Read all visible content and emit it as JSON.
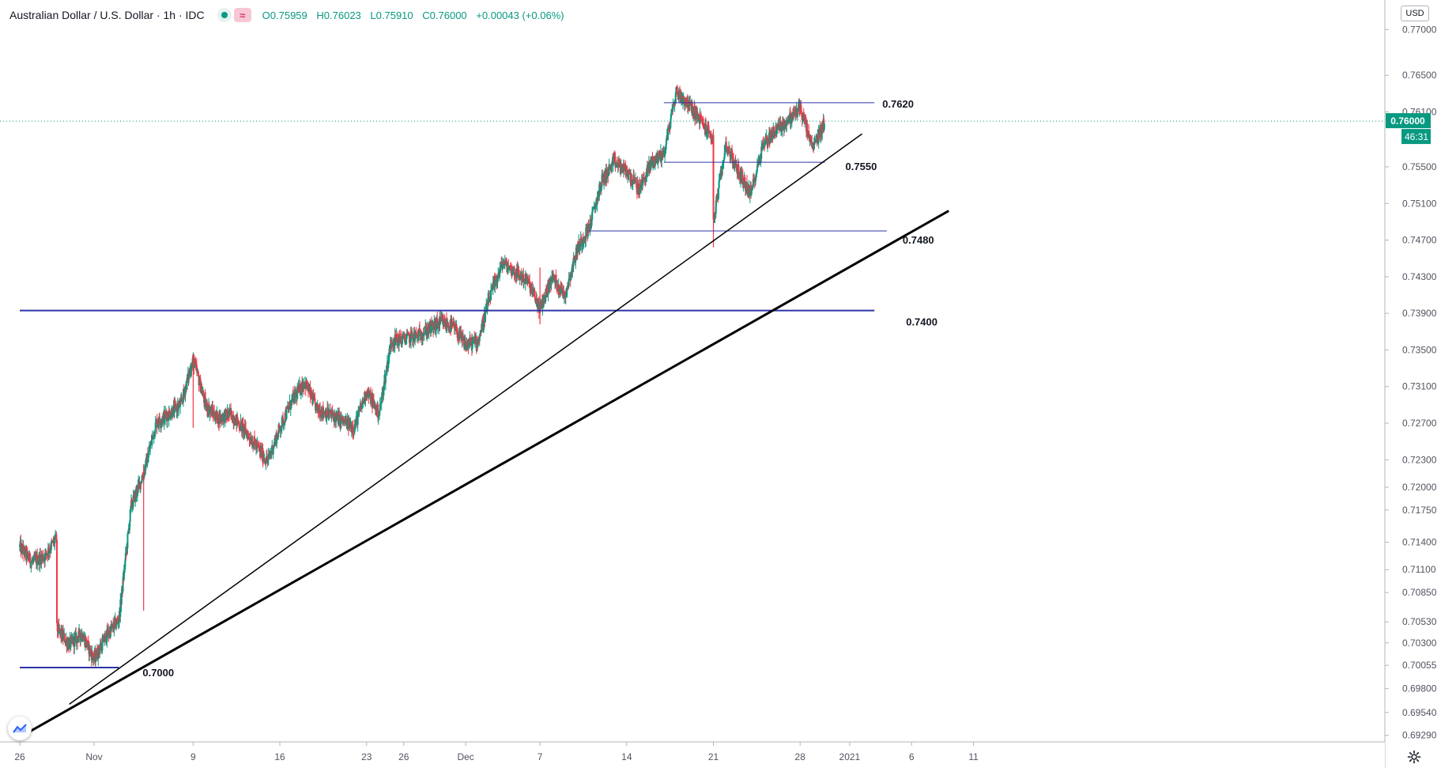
{
  "header": {
    "symbol": "Australian Dollar / U.S. Dollar · 1h · IDC",
    "ohlc": {
      "open_label": "O",
      "open": "0.75959",
      "high_label": "H",
      "high": "0.76023",
      "low_label": "L",
      "low": "0.75910",
      "close_label": "C",
      "close": "0.76000",
      "change": "+0.00043 (+0.06%)"
    }
  },
  "price_axis": {
    "currency": "USD",
    "last_price": "0.76000",
    "countdown": "46:31"
  },
  "colors": {
    "up": "#089981",
    "down": "#f23645",
    "level_line": "#2d34a8",
    "trend_line": "#000000",
    "price_tag": "#089981"
  },
  "chart_data": {
    "type": "candlestick",
    "y_ticks": [
      0.77,
      0.765,
      0.761,
      0.755,
      0.751,
      0.747,
      0.743,
      0.739,
      0.735,
      0.731,
      0.727,
      0.723,
      0.72,
      0.7175,
      0.714,
      0.711,
      0.7085,
      0.7053,
      0.703,
      0.70055,
      0.698,
      0.6954,
      0.6929
    ],
    "y_tick_labels": [
      "0.77000",
      "0.76500",
      "0.76100",
      "0.75500",
      "0.75100",
      "0.74700",
      "0.74300",
      "0.73900",
      "0.73500",
      "0.73100",
      "0.72700",
      "0.72300",
      "0.72000",
      "0.71750",
      "0.71400",
      "0.71100",
      "0.70850",
      "0.70530",
      "0.70300",
      "0.70055",
      "0.69800",
      "0.69540",
      "0.69290"
    ],
    "x_ticks": [
      {
        "label": "26",
        "value": "2020-10-26"
      },
      {
        "label": "Nov",
        "value": "2020-11-01"
      },
      {
        "label": "9",
        "value": "2020-11-09"
      },
      {
        "label": "16",
        "value": "2020-11-16"
      },
      {
        "label": "23",
        "value": "2020-11-23"
      },
      {
        "label": "26",
        "value": "2020-11-26"
      },
      {
        "label": "Dec",
        "value": "2020-12-01"
      },
      {
        "label": "7",
        "value": "2020-12-07"
      },
      {
        "label": "14",
        "value": "2020-12-14"
      },
      {
        "label": "21",
        "value": "2020-12-21"
      },
      {
        "label": "28",
        "value": "2020-12-28"
      },
      {
        "label": "2021",
        "value": "2021-01-01"
      },
      {
        "label": "6",
        "value": "2021-01-06"
      },
      {
        "label": "11",
        "value": "2021-01-11"
      }
    ],
    "price_path": [
      [
        "2020-10-26",
        0.7135
      ],
      [
        "2020-10-27",
        0.7118
      ],
      [
        "2020-10-28",
        0.7125
      ],
      [
        "2020-10-29",
        0.7145
      ],
      [
        "2020-10-29",
        0.7045
      ],
      [
        "2020-10-30",
        0.7028
      ],
      [
        "2020-10-31",
        0.704
      ],
      [
        "2020-11-01",
        0.7012
      ],
      [
        "2020-11-02",
        0.7038
      ],
      [
        "2020-11-03",
        0.7055
      ],
      [
        "2020-11-04",
        0.718
      ],
      [
        "2020-11-05",
        0.7215
      ],
      [
        "2020-11-06",
        0.727
      ],
      [
        "2020-11-08",
        0.729
      ],
      [
        "2020-11-09",
        0.734
      ],
      [
        "2020-11-10",
        0.729
      ],
      [
        "2020-11-11",
        0.7275
      ],
      [
        "2020-11-12",
        0.728
      ],
      [
        "2020-11-13",
        0.7265
      ],
      [
        "2020-11-15",
        0.7228
      ],
      [
        "2020-11-16",
        0.7265
      ],
      [
        "2020-11-17",
        0.7295
      ],
      [
        "2020-11-18",
        0.7315
      ],
      [
        "2020-11-19",
        0.7285
      ],
      [
        "2020-11-20",
        0.728
      ],
      [
        "2020-11-22",
        0.7265
      ],
      [
        "2020-11-23",
        0.7305
      ],
      [
        "2020-11-24",
        0.728
      ],
      [
        "2020-11-25",
        0.736
      ],
      [
        "2020-11-26",
        0.7362
      ],
      [
        "2020-11-27",
        0.7365
      ],
      [
        "2020-11-29",
        0.738
      ],
      [
        "2020-11-30",
        0.7375
      ],
      [
        "2020-12-01",
        0.7355
      ],
      [
        "2020-12-02",
        0.736
      ],
      [
        "2020-12-03",
        0.741
      ],
      [
        "2020-12-04",
        0.7445
      ],
      [
        "2020-12-05",
        0.7435
      ],
      [
        "2020-12-06",
        0.7425
      ],
      [
        "2020-12-07",
        0.7395
      ],
      [
        "2020-12-08",
        0.743
      ],
      [
        "2020-12-09",
        0.741
      ],
      [
        "2020-12-10",
        0.746
      ],
      [
        "2020-12-11",
        0.7485
      ],
      [
        "2020-12-12",
        0.7535
      ],
      [
        "2020-12-13",
        0.7555
      ],
      [
        "2020-12-14",
        0.7545
      ],
      [
        "2020-12-15",
        0.7525
      ],
      [
        "2020-12-16",
        0.7555
      ],
      [
        "2020-12-17",
        0.7565
      ],
      [
        "2020-12-18",
        0.7632
      ],
      [
        "2020-12-19",
        0.7618
      ],
      [
        "2020-12-20",
        0.76
      ],
      [
        "2020-12-21",
        0.758
      ],
      [
        "2020-12-21",
        0.749
      ],
      [
        "2020-12-22",
        0.7575
      ],
      [
        "2020-12-23",
        0.7545
      ],
      [
        "2020-12-24",
        0.752
      ],
      [
        "2020-12-25",
        0.7575
      ],
      [
        "2020-12-26",
        0.759
      ],
      [
        "2020-12-27",
        0.76
      ],
      [
        "2020-12-28",
        0.7615
      ],
      [
        "2020-12-29",
        0.757
      ],
      [
        "2020-12-30",
        0.76
      ]
    ],
    "spikes": [
      {
        "x": "2020-12-21",
        "low": 0.7462,
        "high": 0.759
      },
      {
        "x": "2020-12-07",
        "low": 0.7378,
        "high": 0.744
      },
      {
        "x": "2020-11-09",
        "low": 0.7265,
        "high": 0.7345
      },
      {
        "x": "2020-11-05",
        "low": 0.7065,
        "high": 0.7225
      }
    ],
    "horizontal_levels": [
      {
        "price": 0.762,
        "x_start": "2020-12-17",
        "x_end": "2021-01-03",
        "label": "0.7620",
        "weight": "thin"
      },
      {
        "price": 0.7555,
        "x_start": "2020-12-17",
        "x_end": "2020-12-30",
        "label": "0.7550",
        "weight": "thin"
      },
      {
        "price": 0.748,
        "x_start": "2020-12-11",
        "x_end": "2021-01-04",
        "label": "0.7480",
        "weight": "thin"
      },
      {
        "price": 0.7393,
        "x_start": "2020-10-26",
        "x_end": "2021-01-03",
        "label": "0.7400",
        "weight": "medium"
      },
      {
        "price": 0.7003,
        "x_start": "2020-10-26",
        "x_end": "2020-11-03",
        "label": "0.7000",
        "weight": "medium"
      }
    ],
    "trend_lines": [
      {
        "x1": "2020-10-30",
        "y1": 0.6963,
        "x2": "2021-01-02",
        "y2": 0.7586,
        "weight": "thin"
      },
      {
        "x1": "2020-10-26",
        "y1": 0.6927,
        "x2": "2021-01-09",
        "y2": 0.7502,
        "weight": "thick"
      }
    ],
    "last_price": 0.76,
    "grid": false
  }
}
